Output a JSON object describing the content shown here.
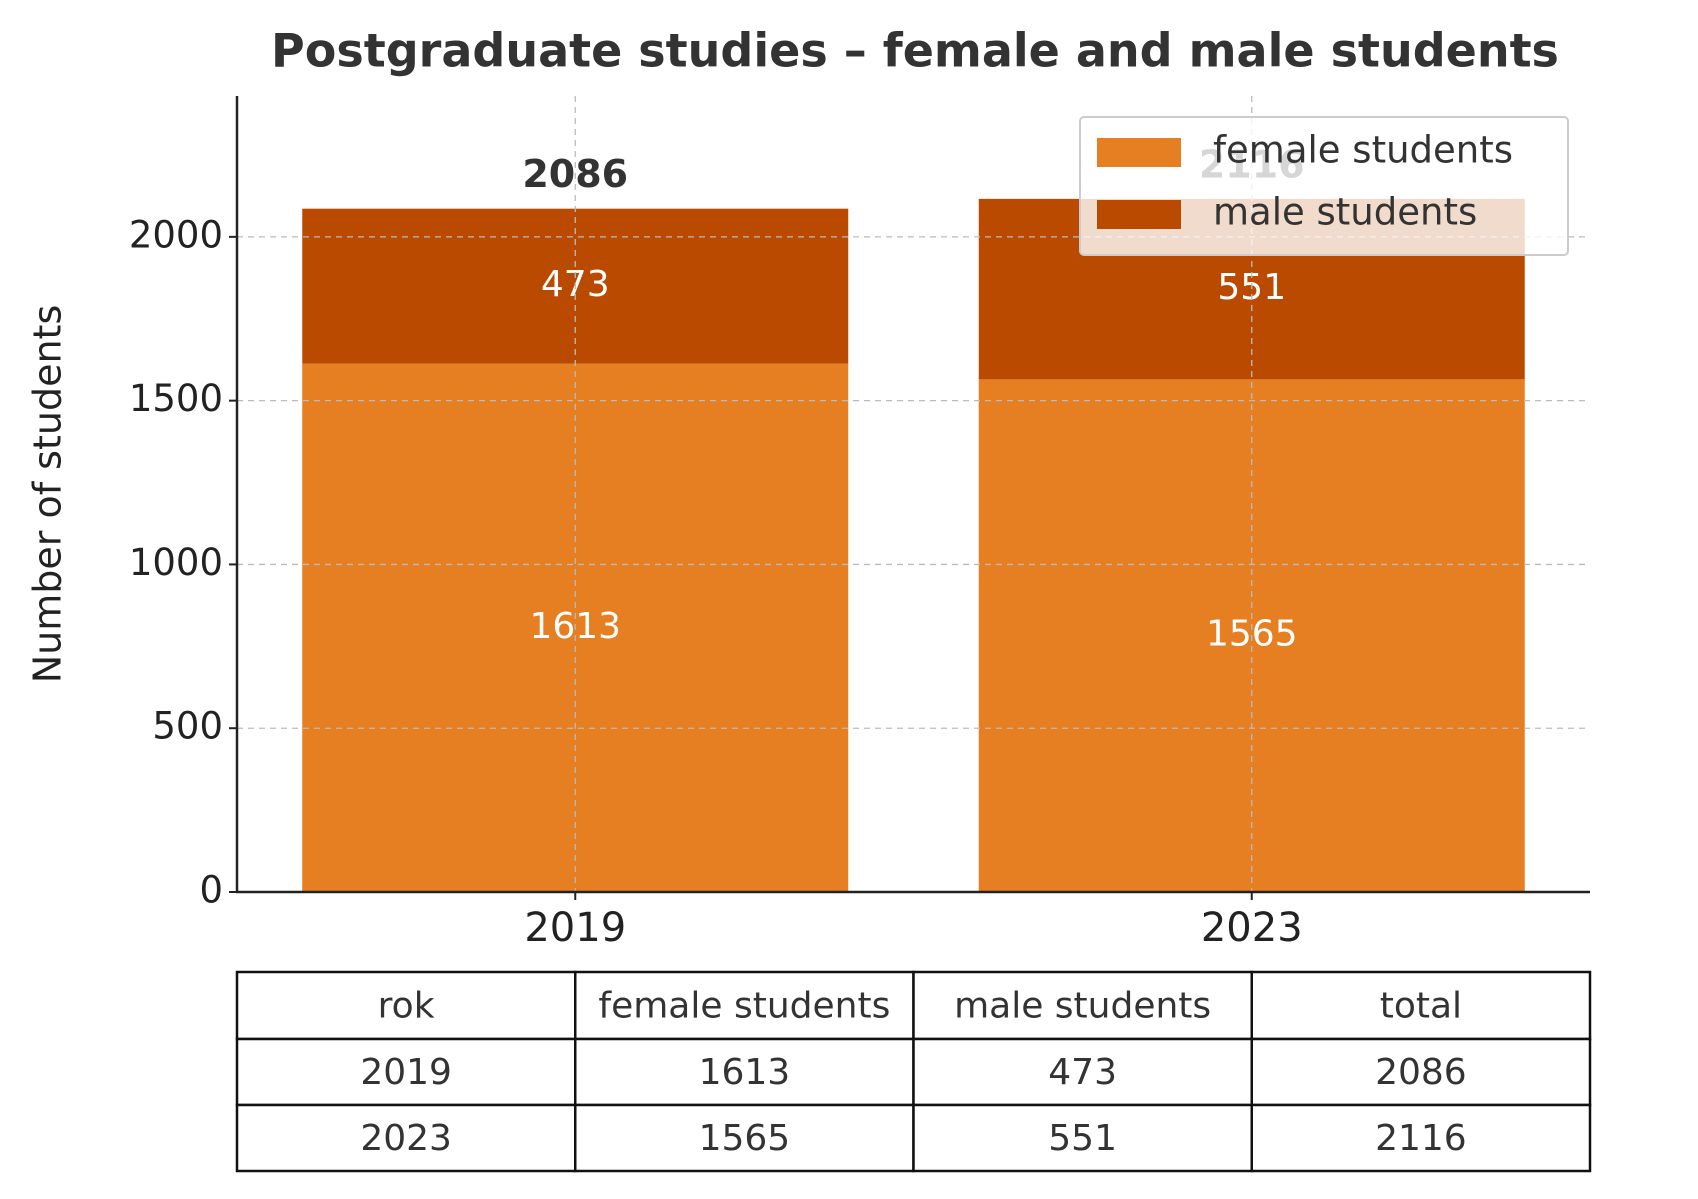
{
  "chart_data": {
    "type": "stacked_bar",
    "title": "Postgraduate studies – female and male students",
    "y_label": "Number of students",
    "categories": [
      "2019",
      "2023"
    ],
    "series": [
      {
        "name": "female students",
        "color": "#e67e22",
        "values": [
          1613,
          1565
        ]
      },
      {
        "name": "male students",
        "color": "#ba4a00",
        "values": [
          473,
          551
        ]
      }
    ],
    "totals": [
      2086,
      2116
    ],
    "ylim": [
      0,
      2430
    ],
    "yticks": [
      0,
      500,
      1000,
      1500,
      2000
    ],
    "grid": true,
    "legend": "upper right"
  },
  "table": {
    "header": [
      "rok",
      "female students",
      "male students",
      "total"
    ],
    "rows": [
      [
        "2019",
        "1613",
        "473",
        "2086"
      ],
      [
        "2023",
        "1565",
        "551",
        "2116"
      ]
    ]
  }
}
